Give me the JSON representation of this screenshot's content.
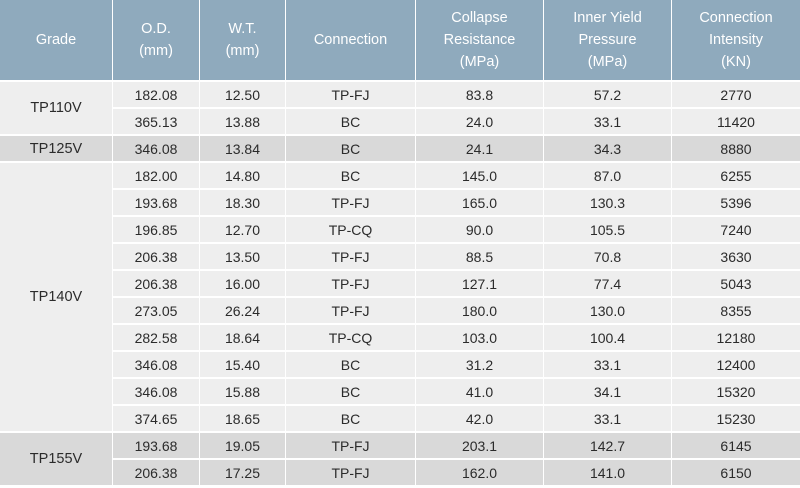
{
  "headers": [
    [
      "Grade"
    ],
    [
      "O.D.",
      "(mm)"
    ],
    [
      "W.T.",
      "(mm)"
    ],
    [
      "Connection"
    ],
    [
      "Collapse",
      "Resistance",
      "(MPa)"
    ],
    [
      "Inner Yield",
      "Pressure",
      "(MPa)"
    ],
    [
      "Connection",
      "Intensity",
      "(KN)"
    ]
  ],
  "groups": [
    {
      "grade": "TP110V",
      "shade": "light",
      "rows": [
        [
          "182.08",
          "12.50",
          "TP-FJ",
          "83.8",
          "57.2",
          "2770"
        ],
        [
          "365.13",
          "13.88",
          "BC",
          "24.0",
          "33.1",
          "11420"
        ]
      ]
    },
    {
      "grade": "TP125V",
      "shade": "dark",
      "rows": [
        [
          "346.08",
          "13.84",
          "BC",
          "24.1",
          "34.3",
          "8880"
        ]
      ]
    },
    {
      "grade": "TP140V",
      "shade": "light",
      "rows": [
        [
          "182.00",
          "14.80",
          "BC",
          "145.0",
          "87.0",
          "6255"
        ],
        [
          "193.68",
          "18.30",
          "TP-FJ",
          "165.0",
          "130.3",
          "5396"
        ],
        [
          "196.85",
          "12.70",
          "TP-CQ",
          "90.0",
          "105.5",
          "7240"
        ],
        [
          "206.38",
          "13.50",
          "TP-FJ",
          "88.5",
          "70.8",
          "3630"
        ],
        [
          "206.38",
          "16.00",
          "TP-FJ",
          "127.1",
          "77.4",
          "5043"
        ],
        [
          "273.05",
          "26.24",
          "TP-FJ",
          "180.0",
          "130.0",
          "8355"
        ],
        [
          "282.58",
          "18.64",
          "TP-CQ",
          "103.0",
          "100.4",
          "12180"
        ],
        [
          "346.08",
          "15.40",
          "BC",
          "31.2",
          "33.1",
          "12400"
        ],
        [
          "346.08",
          "15.88",
          "BC",
          "41.0",
          "34.1",
          "15320"
        ],
        [
          "374.65",
          "18.65",
          "BC",
          "42.0",
          "33.1",
          "15230"
        ]
      ]
    },
    {
      "grade": "TP155V",
      "shade": "dark",
      "rows": [
        [
          "193.68",
          "19.05",
          "TP-FJ",
          "203.1",
          "142.7",
          "6145"
        ],
        [
          "206.38",
          "17.25",
          "TP-FJ",
          "162.0",
          "141.0",
          "6150"
        ]
      ]
    }
  ]
}
